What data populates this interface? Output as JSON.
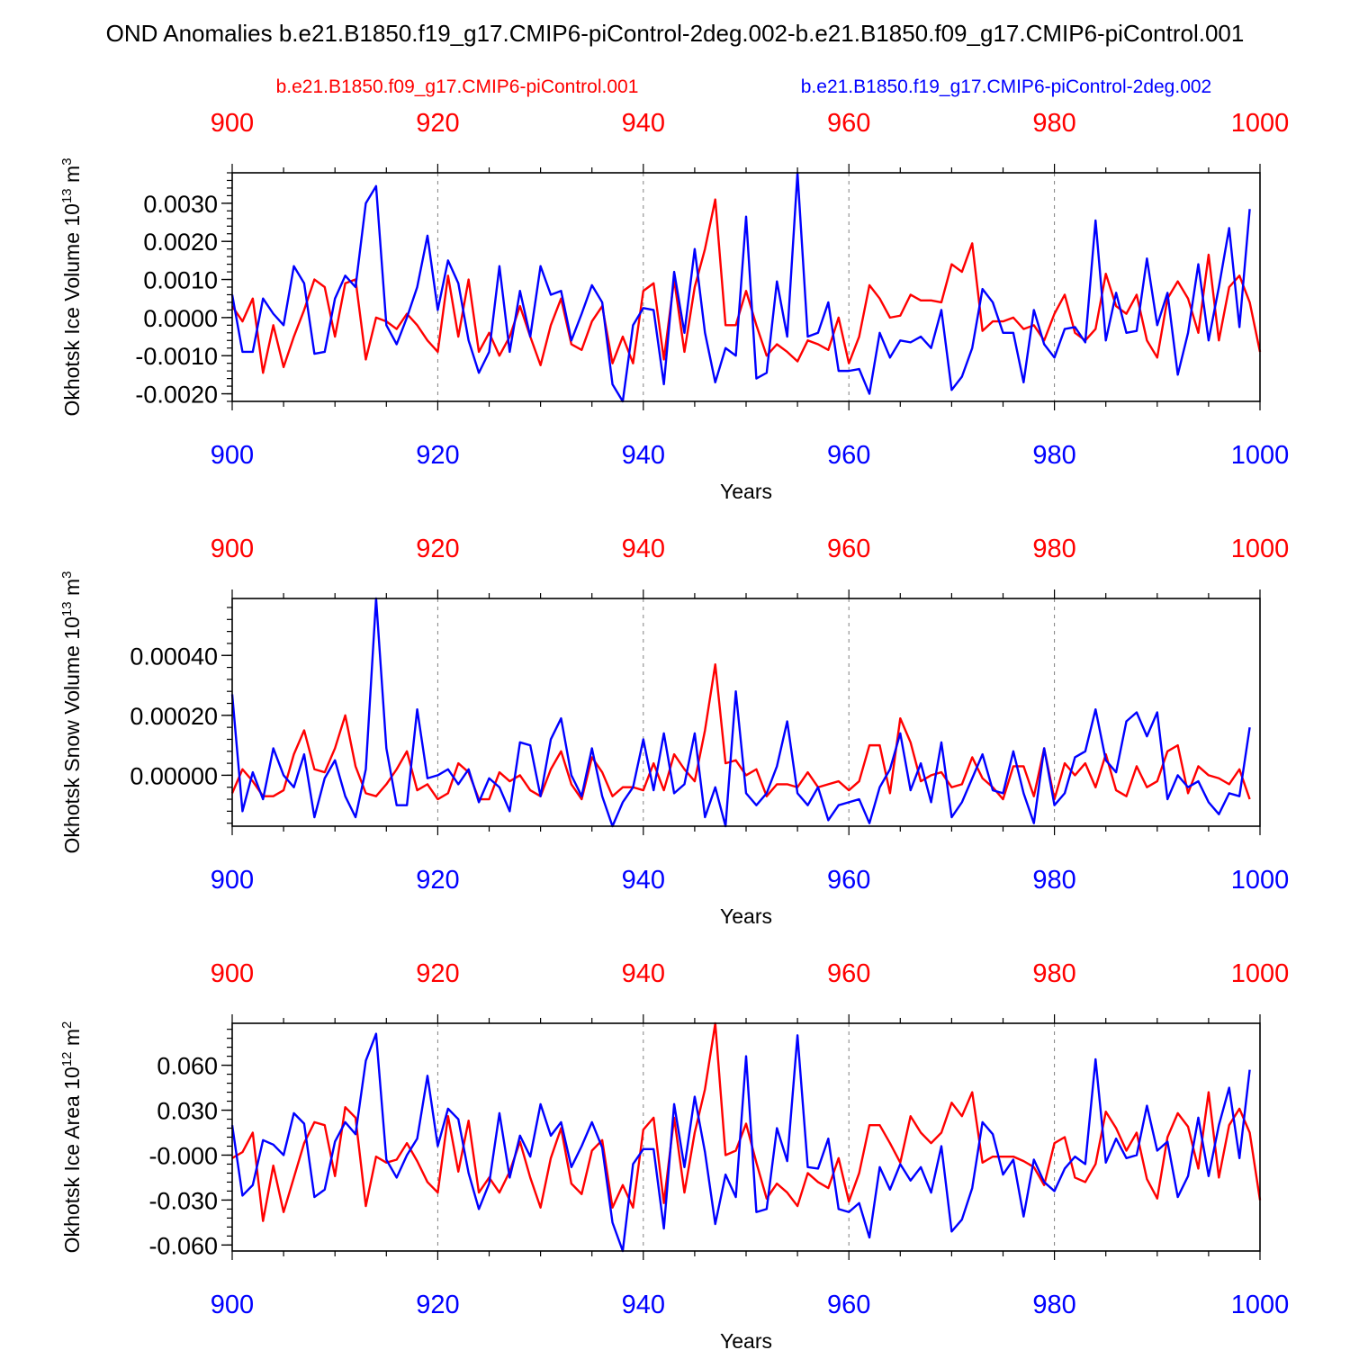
{
  "title": "OND Anomalies b.e21.B1850.f19_g17.CMIP6-piControl-2deg.002-b.e21.B1850.f09_g17.CMIP6-piControl.001",
  "legend": {
    "red_label": "b.e21.B1850.f09_g17.CMIP6-piControl.001",
    "blue_label": "b.e21.B1850.f19_g17.CMIP6-piControl-2deg.002"
  },
  "colors": {
    "red": "#ff0000",
    "blue": "#0000ff",
    "axis": "#000000",
    "grid": "#808080"
  },
  "chart_data": [
    {
      "type": "line",
      "title": "Ice Volume",
      "ylabel": "Okhotsk Ice Volume 10",
      "ylabel_sup": "13",
      "ylabel_unit": " m",
      "ylabel_unit_sup": "3",
      "xlabel": "Years",
      "xlim": [
        900,
        1000
      ],
      "ylim": [
        -0.0022,
        0.0038
      ],
      "x_ticks": [
        "900",
        "920",
        "940",
        "960",
        "980",
        "1000"
      ],
      "y_ticks": [
        {
          "value": -0.002,
          "label": "-0.0020"
        },
        {
          "value": -0.001,
          "label": "-0.0010"
        },
        {
          "value": 0.0,
          "label": "0.0000"
        },
        {
          "value": 0.001,
          "label": "0.0010"
        },
        {
          "value": 0.002,
          "label": "0.0020"
        },
        {
          "value": 0.003,
          "label": "0.0030"
        }
      ],
      "y_minor_step": 0.0002,
      "x_start": 900,
      "series": [
        {
          "name": "b.e21.B1850.f09_g17.CMIP6-piControl.001",
          "color": "red",
          "values": [
            0.0003,
            -0.0001,
            0.0005,
            -0.00145,
            -0.0002,
            -0.0013,
            -0.0005,
            0.0002,
            0.001,
            0.0008,
            -0.0005,
            0.0009,
            0.001,
            -0.0011,
            0.0,
            -0.0001,
            -0.0003,
            0.0001,
            -0.0002,
            -0.0006,
            -0.0009,
            0.0011,
            -0.0005,
            0.001,
            -0.0009,
            -0.0004,
            -0.001,
            -0.0005,
            0.0003,
            -0.0005,
            -0.00125,
            -0.0002,
            0.0005,
            -0.0007,
            -0.00085,
            -0.0001,
            0.0003,
            -0.0012,
            -0.0005,
            -0.0012,
            0.0007,
            0.0009,
            -0.0011,
            0.001,
            -0.0009,
            0.0008,
            0.0018,
            0.0031,
            -0.0002,
            -0.0002,
            0.0007,
            -0.0002,
            -0.001,
            -0.0007,
            -0.0009,
            -0.00115,
            -0.0006,
            -0.0007,
            -0.00085,
            0.0,
            -0.0012,
            -0.0005,
            0.00085,
            0.0005,
            0.0,
            5e-05,
            0.0006,
            0.00045,
            0.00045,
            0.0004,
            0.0014,
            0.0012,
            0.00195,
            -0.00035,
            -0.0001,
            -0.0001,
            0.0,
            -0.0003,
            -0.0002,
            -0.0006,
            0.0001,
            0.0006,
            -0.0004,
            -0.0006,
            -0.0003,
            0.00115,
            0.0003,
            0.0001,
            0.0006,
            -0.0006,
            -0.00105,
            0.0005,
            0.00095,
            0.0005,
            -0.0004,
            0.00165,
            -0.0006,
            0.0008,
            0.0011,
            0.0004,
            -0.0009
          ]
        },
        {
          "name": "b.e21.B1850.f19_g17.CMIP6-piControl-2deg.002",
          "color": "blue",
          "values": [
            0.0006,
            -0.0009,
            -0.0009,
            0.0005,
            0.0001,
            -0.0002,
            0.00135,
            0.0009,
            -0.00095,
            -0.0009,
            0.0005,
            0.0011,
            0.0008,
            0.003,
            0.00345,
            -0.0002,
            -0.0007,
            0.0,
            0.0008,
            0.00215,
            0.0002,
            0.0015,
            0.0009,
            -0.0006,
            -0.00145,
            -0.0009,
            0.00135,
            -0.0009,
            0.0007,
            -0.0005,
            0.00135,
            0.0006,
            0.0007,
            -0.0006,
            0.0001,
            0.00085,
            0.0004,
            -0.00175,
            -0.0022,
            -0.0002,
            0.00025,
            0.0002,
            -0.00175,
            0.0012,
            -0.0004,
            0.0018,
            -0.0004,
            -0.0017,
            -0.0008,
            -0.001,
            0.00265,
            -0.0016,
            -0.00145,
            0.00095,
            -0.0005,
            0.0038,
            -0.0005,
            -0.0004,
            0.0004,
            -0.0014,
            -0.0014,
            -0.00135,
            -0.002,
            -0.0004,
            -0.00105,
            -0.0006,
            -0.00065,
            -0.0005,
            -0.0008,
            0.0002,
            -0.0019,
            -0.00155,
            -0.0008,
            0.00075,
            0.0004,
            -0.0004,
            -0.0004,
            -0.0017,
            0.0002,
            -0.0007,
            -0.00105,
            -0.0003,
            -0.00025,
            -0.00065,
            0.00255,
            -0.0006,
            0.00065,
            -0.0004,
            -0.00035,
            0.00155,
            -0.0002,
            0.00065,
            -0.0015,
            -0.0004,
            0.0014,
            -0.0006,
            0.0008,
            0.00235,
            -0.00025,
            0.00285
          ]
        }
      ]
    },
    {
      "type": "line",
      "title": "Snow Volume",
      "ylabel": "Okhotsk Snow Volume 10",
      "ylabel_sup": "13",
      "ylabel_unit": " m",
      "ylabel_unit_sup": "3",
      "xlabel": "Years",
      "xlim": [
        900,
        1000
      ],
      "ylim": [
        -0.00017,
        0.00059
      ],
      "x_ticks": [
        "900",
        "920",
        "940",
        "960",
        "980",
        "1000"
      ],
      "y_ticks": [
        {
          "value": 0.0,
          "label": "0.00000"
        },
        {
          "value": 0.0002,
          "label": "0.00020"
        },
        {
          "value": 0.0004,
          "label": "0.00040"
        }
      ],
      "y_minor_step": 4e-05,
      "x_start": 900,
      "series": [
        {
          "name": "b.e21.B1850.f09_g17.CMIP6-piControl.001",
          "color": "red",
          "values": [
            -6e-05,
            2e-05,
            -2e-05,
            -7e-05,
            -7e-05,
            -5e-05,
            7e-05,
            0.00015,
            2e-05,
            1e-05,
            9e-05,
            0.0002,
            3e-05,
            -6e-05,
            -7e-05,
            -3e-05,
            2e-05,
            8e-05,
            -5e-05,
            -3e-05,
            -8e-05,
            -6e-05,
            4e-05,
            1e-05,
            -8e-05,
            -8e-05,
            1e-05,
            -2e-05,
            0.0,
            -5e-05,
            -7e-05,
            2e-05,
            8e-05,
            -3e-05,
            -8e-05,
            6e-05,
            1e-05,
            -7e-05,
            -4e-05,
            -4e-05,
            -5e-05,
            4e-05,
            -5e-05,
            7e-05,
            2e-05,
            -2e-05,
            0.00015,
            0.00037,
            4e-05,
            5e-05,
            0.0,
            2e-05,
            -7e-05,
            -3e-05,
            -3e-05,
            -4e-05,
            1e-05,
            -4e-05,
            -3e-05,
            -2e-05,
            -5e-05,
            -2e-05,
            0.0001,
            0.0001,
            -6e-05,
            0.00019,
            0.00011,
            -2e-05,
            0.0,
            1e-05,
            -4e-05,
            -3e-05,
            6e-05,
            -1e-05,
            -4e-05,
            -8e-05,
            3e-05,
            3e-05,
            -7e-05,
            9e-05,
            -8e-05,
            4e-05,
            0.0,
            4e-05,
            -4e-05,
            7e-05,
            -5e-05,
            -7e-05,
            3e-05,
            -4e-05,
            -2e-05,
            8e-05,
            0.0001,
            -6e-05,
            3e-05,
            0.0,
            -1e-05,
            -3e-05,
            2e-05,
            -8e-05
          ]
        },
        {
          "name": "b.e21.B1850.f19_g17.CMIP6-piControl-2deg.002",
          "color": "blue",
          "values": [
            0.00027,
            -0.00012,
            1e-05,
            -8e-05,
            9e-05,
            0.0,
            -4e-05,
            7e-05,
            -0.00014,
            -1e-05,
            5e-05,
            -7e-05,
            -0.00014,
            2e-05,
            0.00059,
            9e-05,
            -0.0001,
            -0.0001,
            0.00022,
            -1e-05,
            0.0,
            2e-05,
            -3e-05,
            2e-05,
            -9e-05,
            -1e-05,
            -4e-05,
            -0.00012,
            0.00011,
            0.0001,
            -7e-05,
            0.00012,
            0.00019,
            0.0,
            -7e-05,
            9e-05,
            -7e-05,
            -0.00017,
            -9e-05,
            -4e-05,
            0.00012,
            -5e-05,
            0.00014,
            -6e-05,
            -3e-05,
            0.00014,
            -0.00014,
            -4e-05,
            -0.00017,
            0.00028,
            -6e-05,
            -0.0001,
            -6e-05,
            3e-05,
            0.00018,
            -6e-05,
            -0.0001,
            -4e-05,
            -0.00015,
            -0.0001,
            -9e-05,
            -8e-05,
            -0.00016,
            -4e-05,
            2e-05,
            0.00014,
            -5e-05,
            4e-05,
            -9e-05,
            0.00011,
            -0.00014,
            -9e-05,
            -1e-05,
            7e-05,
            -5e-05,
            -6e-05,
            8e-05,
            -6e-05,
            -0.00016,
            9e-05,
            -0.0001,
            -6e-05,
            6e-05,
            8e-05,
            0.00022,
            5e-05,
            1e-05,
            0.00018,
            0.00021,
            0.00013,
            0.00021,
            -8e-05,
            0.0,
            -4e-05,
            -2e-05,
            -9e-05,
            -0.00013,
            -6e-05,
            -7e-05,
            0.00016
          ]
        }
      ]
    },
    {
      "type": "line",
      "title": "Ice Area",
      "ylabel": "Okhotsk Ice Area 10",
      "ylabel_sup": "12",
      "ylabel_unit": " m",
      "ylabel_unit_sup": "2",
      "xlabel": "Years",
      "xlim": [
        900,
        1000
      ],
      "ylim": [
        -0.064,
        0.088
      ],
      "x_ticks": [
        "900",
        "920",
        "940",
        "960",
        "980",
        "1000"
      ],
      "y_ticks": [
        {
          "value": -0.06,
          "label": "-0.060"
        },
        {
          "value": -0.03,
          "label": "-0.030"
        },
        {
          "value": 0.0,
          "label": "-0.000"
        },
        {
          "value": 0.03,
          "label": "0.030"
        },
        {
          "value": 0.06,
          "label": "0.060"
        }
      ],
      "y_minor_step": 0.006,
      "x_start": 900,
      "series": [
        {
          "name": "b.e21.B1850.f09_g17.CMIP6-piControl.001",
          "color": "red",
          "values": [
            -0.002,
            0.002,
            0.015,
            -0.044,
            -0.007,
            -0.038,
            -0.015,
            0.008,
            0.022,
            0.02,
            -0.014,
            0.032,
            0.025,
            -0.034,
            -0.001,
            -0.005,
            -0.003,
            0.008,
            -0.004,
            -0.018,
            -0.025,
            0.026,
            -0.011,
            0.023,
            -0.025,
            -0.015,
            -0.025,
            -0.011,
            0.009,
            -0.015,
            -0.035,
            -0.002,
            0.018,
            -0.019,
            -0.026,
            0.003,
            0.01,
            -0.035,
            -0.02,
            -0.035,
            0.017,
            0.025,
            -0.032,
            0.025,
            -0.025,
            0.015,
            0.044,
            0.088,
            0.0,
            0.003,
            0.021,
            -0.005,
            -0.029,
            -0.019,
            -0.025,
            -0.034,
            -0.012,
            -0.018,
            -0.022,
            -0.002,
            -0.031,
            -0.012,
            0.02,
            0.02,
            0.008,
            -0.005,
            0.026,
            0.015,
            0.008,
            0.015,
            0.035,
            0.026,
            0.042,
            -0.005,
            -0.001,
            -0.001,
            -0.001,
            -0.004,
            -0.008,
            -0.02,
            0.008,
            0.012,
            -0.015,
            -0.018,
            -0.006,
            0.029,
            0.018,
            0.003,
            0.015,
            -0.016,
            -0.029,
            0.012,
            0.028,
            0.019,
            -0.009,
            0.042,
            -0.015,
            0.02,
            0.031,
            0.015,
            -0.03
          ]
        },
        {
          "name": "b.e21.B1850.f19_g17.CMIP6-piControl-2deg.002",
          "color": "blue",
          "values": [
            0.02,
            -0.027,
            -0.02,
            0.01,
            0.007,
            0.0,
            0.028,
            0.021,
            -0.028,
            -0.023,
            0.009,
            0.022,
            0.014,
            0.063,
            0.081,
            -0.003,
            -0.015,
            0.0,
            0.011,
            0.053,
            0.006,
            0.031,
            0.024,
            -0.012,
            -0.036,
            -0.019,
            0.028,
            -0.015,
            0.013,
            -0.001,
            0.034,
            0.013,
            0.022,
            -0.008,
            0.006,
            0.022,
            0.005,
            -0.045,
            -0.064,
            -0.006,
            0.004,
            0.004,
            -0.049,
            0.034,
            -0.008,
            0.039,
            0.002,
            -0.046,
            -0.013,
            -0.028,
            0.066,
            -0.038,
            -0.036,
            0.018,
            -0.004,
            0.08,
            -0.008,
            -0.009,
            0.011,
            -0.036,
            -0.038,
            -0.032,
            -0.055,
            -0.008,
            -0.023,
            -0.006,
            -0.017,
            -0.008,
            -0.025,
            0.006,
            -0.051,
            -0.043,
            -0.022,
            0.022,
            0.014,
            -0.013,
            -0.003,
            -0.041,
            -0.003,
            -0.018,
            -0.024,
            -0.009,
            -0.001,
            -0.006,
            0.064,
            -0.005,
            0.011,
            -0.002,
            0.0,
            0.033,
            0.003,
            0.009,
            -0.028,
            -0.014,
            0.025,
            -0.014,
            0.02,
            0.045,
            -0.002,
            0.057
          ]
        }
      ]
    }
  ]
}
